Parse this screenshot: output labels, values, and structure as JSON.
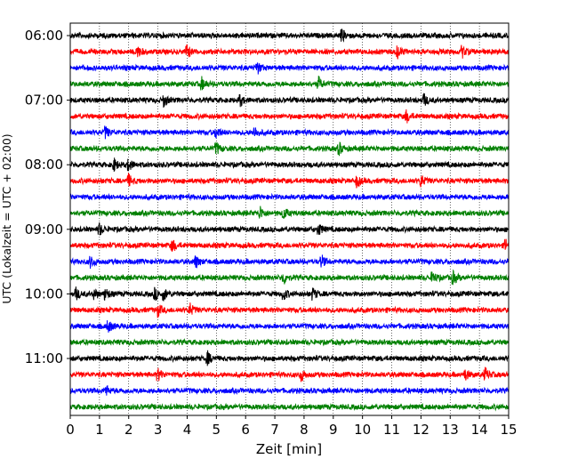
{
  "chart_data": {
    "type": "line",
    "xlabel": "Zeit  [min]",
    "ylabel": "UTC (Lokalzeit = UTC + 02:00)",
    "xlim": [
      0,
      15
    ],
    "x_ticks": [
      "0",
      "1",
      "2",
      "3",
      "4",
      "5",
      "6",
      "7",
      "8",
      "9",
      "10",
      "11",
      "12",
      "13",
      "14",
      "15"
    ],
    "y_tick_labels": [
      "06:00",
      "07:00",
      "08:00",
      "09:00",
      "10:00",
      "11:00"
    ],
    "grid": "vertical dotted lines at each minute",
    "trace_interval_minutes": 15,
    "first_trace": "06:00",
    "last_trace": "11:45",
    "color_cycle": [
      "#000000",
      "#ff0000",
      "#0000ff",
      "#008000"
    ],
    "series": [
      {
        "start": "06:00",
        "color": "#000000",
        "events_min": [
          9.3
        ]
      },
      {
        "start": "06:15",
        "color": "#ff0000",
        "events_min": [
          2.3,
          4.0,
          11.2,
          13.4
        ]
      },
      {
        "start": "06:30",
        "color": "#0000ff",
        "events_min": [
          6.4
        ]
      },
      {
        "start": "06:45",
        "color": "#008000",
        "events_min": [
          4.5,
          8.5
        ]
      },
      {
        "start": "07:00",
        "color": "#000000",
        "events_min": [
          3.2,
          5.8,
          12.1
        ]
      },
      {
        "start": "07:15",
        "color": "#ff0000",
        "events_min": [
          11.5
        ]
      },
      {
        "start": "07:30",
        "color": "#0000ff",
        "events_min": [
          1.2,
          5.0,
          6.3
        ]
      },
      {
        "start": "07:45",
        "color": "#008000",
        "events_min": [
          5.0,
          9.2
        ]
      },
      {
        "start": "08:00",
        "color": "#000000",
        "events_min": [
          1.5,
          2.0
        ]
      },
      {
        "start": "08:15",
        "color": "#ff0000",
        "events_min": [
          2.0,
          9.8,
          12.0
        ]
      },
      {
        "start": "08:30",
        "color": "#0000ff",
        "events_min": []
      },
      {
        "start": "08:45",
        "color": "#008000",
        "events_min": [
          6.5,
          7.3
        ]
      },
      {
        "start": "09:00",
        "color": "#000000",
        "events_min": [
          1.0,
          8.5
        ]
      },
      {
        "start": "09:15",
        "color": "#ff0000",
        "events_min": [
          3.5,
          14.9
        ]
      },
      {
        "start": "09:30",
        "color": "#0000ff",
        "events_min": [
          0.7,
          4.3,
          8.6
        ]
      },
      {
        "start": "09:45",
        "color": "#008000",
        "events_min": [
          7.3,
          12.4,
          13.1
        ]
      },
      {
        "start": "10:00",
        "color": "#000000",
        "events_min": [
          0.2,
          0.8,
          1.2,
          2.9,
          3.2,
          7.3,
          8.3
        ]
      },
      {
        "start": "10:15",
        "color": "#ff0000",
        "events_min": [
          3.0,
          4.1
        ]
      },
      {
        "start": "10:30",
        "color": "#0000ff",
        "events_min": [
          1.3
        ]
      },
      {
        "start": "10:45",
        "color": "#008000",
        "events_min": []
      },
      {
        "start": "11:00",
        "color": "#000000",
        "events_min": [
          4.7
        ]
      },
      {
        "start": "11:15",
        "color": "#ff0000",
        "events_min": [
          3.0,
          7.9,
          13.5,
          14.2
        ]
      },
      {
        "start": "11:30",
        "color": "#0000ff",
        "events_min": [
          1.2
        ]
      },
      {
        "start": "11:45",
        "color": "#008000",
        "events_min": []
      }
    ]
  }
}
